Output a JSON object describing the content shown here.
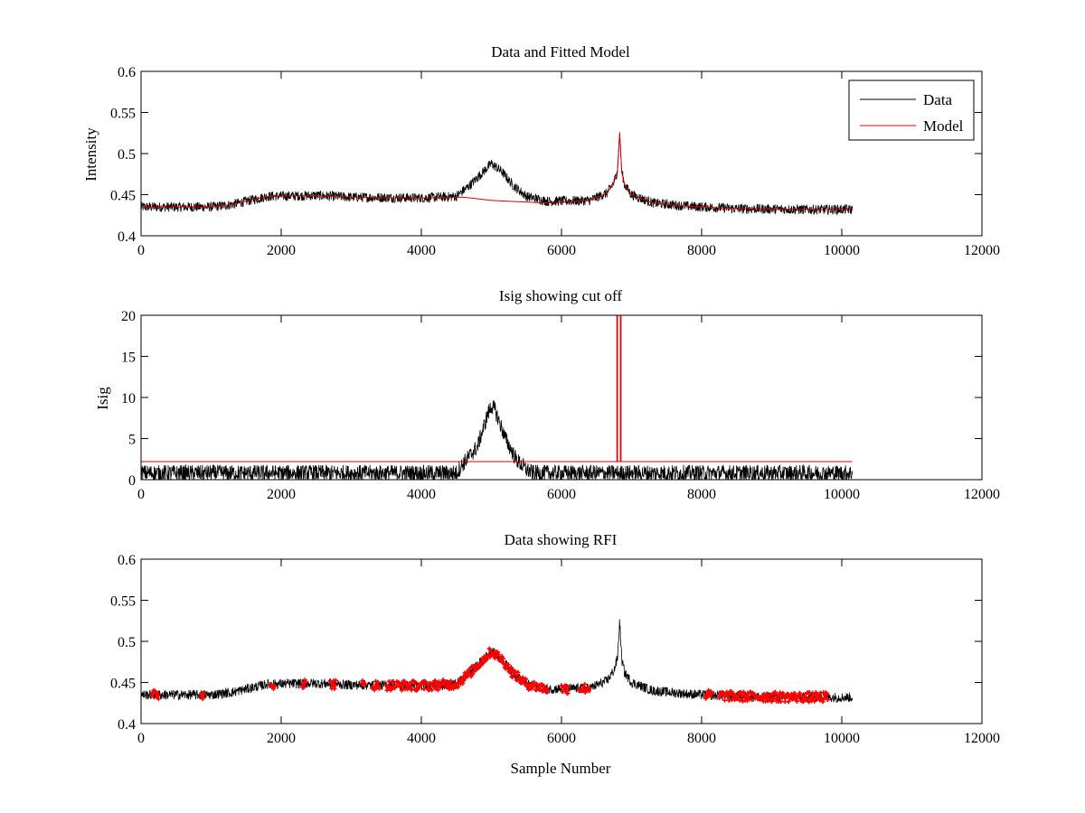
{
  "colors": {
    "data": "#000000",
    "model": "#e00000",
    "rfi": "#ff0000",
    "axes": "#000000",
    "background": "#ffffff"
  },
  "chart_data": [
    {
      "type": "line",
      "title": "Data and Fitted Model",
      "xlabel": "",
      "ylabel": "Intensity",
      "xlim": [
        0,
        12000
      ],
      "ylim": [
        0.4,
        0.6
      ],
      "xticks": [
        0,
        2000,
        4000,
        6000,
        8000,
        10000,
        12000
      ],
      "yticks": [
        0.4,
        0.45,
        0.5,
        0.55,
        0.6
      ],
      "xtick_labels": [
        "0",
        "2000",
        "4000",
        "6000",
        "8000",
        "10000",
        "12000"
      ],
      "ytick_labels": [
        "0.4",
        "0.45",
        "0.5",
        "0.55",
        "0.6"
      ],
      "grid": false,
      "legend": {
        "position": "top-right",
        "entries": [
          "Data",
          "Model"
        ]
      },
      "series": [
        {
          "name": "Data",
          "color": "#000000",
          "noise": 0.006,
          "x": [
            0,
            1000,
            1300,
            1800,
            2500,
            3000,
            4000,
            4500,
            4700,
            4850,
            5000,
            5150,
            5300,
            5500,
            5800,
            6400,
            6650,
            6750,
            6800,
            6830,
            6860,
            6900,
            7000,
            7300,
            7800,
            8500,
            9500,
            10150
          ],
          "y": [
            0.435,
            0.435,
            0.438,
            0.448,
            0.449,
            0.447,
            0.446,
            0.448,
            0.462,
            0.475,
            0.488,
            0.478,
            0.462,
            0.448,
            0.442,
            0.443,
            0.452,
            0.465,
            0.48,
            0.525,
            0.478,
            0.462,
            0.45,
            0.44,
            0.436,
            0.433,
            0.432,
            0.432
          ]
        },
        {
          "name": "Model",
          "color": "#e00000",
          "noise": 0,
          "x": [
            0,
            1000,
            1300,
            1800,
            2500,
            3000,
            4000,
            4600,
            5000,
            5500,
            5800,
            6400,
            6650,
            6750,
            6800,
            6830,
            6860,
            6900,
            7000,
            7300,
            7800,
            8500,
            9500,
            10150
          ],
          "y": [
            0.435,
            0.435,
            0.438,
            0.448,
            0.449,
            0.447,
            0.446,
            0.447,
            0.443,
            0.441,
            0.44,
            0.443,
            0.452,
            0.465,
            0.48,
            0.526,
            0.478,
            0.462,
            0.45,
            0.44,
            0.436,
            0.433,
            0.432,
            0.432
          ]
        }
      ]
    },
    {
      "type": "line",
      "title": "Isig showing cut off",
      "xlabel": "",
      "ylabel": "Isig",
      "xlim": [
        0,
        12000
      ],
      "ylim": [
        0,
        20
      ],
      "xticks": [
        0,
        2000,
        4000,
        6000,
        8000,
        10000,
        12000
      ],
      "yticks": [
        0,
        5,
        10,
        15,
        20
      ],
      "xtick_labels": [
        "0",
        "2000",
        "4000",
        "6000",
        "8000",
        "10000",
        "12000"
      ],
      "ytick_labels": [
        "0",
        "5",
        "10",
        "15",
        "20"
      ],
      "grid": false,
      "series": [
        {
          "name": "Isig",
          "color": "#000000",
          "noise": 1.0,
          "x": [
            0,
            4500,
            4600,
            4800,
            4950,
            5000,
            5050,
            5200,
            5350,
            5500,
            5600,
            10150
          ],
          "y": [
            0.8,
            0.8,
            2.0,
            4.0,
            8.0,
            9.0,
            8.5,
            5.0,
            2.5,
            1.2,
            0.8,
            0.8
          ]
        },
        {
          "name": "Cut off",
          "color": "#e00000",
          "noise": 0,
          "x": [
            0,
            6790,
            6790,
            6800,
            6800,
            6840,
            6840,
            6850,
            6850,
            10150
          ],
          "y": [
            2.2,
            2.2,
            20,
            20,
            2.2,
            2.2,
            20,
            20,
            2.2,
            2.2
          ]
        }
      ]
    },
    {
      "type": "scatter",
      "title": "Data showing RFI",
      "xlabel": "Sample Number",
      "ylabel": "",
      "xlim": [
        0,
        12000
      ],
      "ylim": [
        0.4,
        0.6
      ],
      "xticks": [
        0,
        2000,
        4000,
        6000,
        8000,
        10000,
        12000
      ],
      "yticks": [
        0.4,
        0.45,
        0.5,
        0.55,
        0.6
      ],
      "xtick_labels": [
        "0",
        "2000",
        "4000",
        "6000",
        "8000",
        "10000",
        "12000"
      ],
      "ytick_labels": [
        "0.4",
        "0.45",
        "0.5",
        "0.55",
        "0.6"
      ],
      "grid": false,
      "series": [
        {
          "name": "Data",
          "color": "#000000",
          "noise": 0.006,
          "x": [
            0,
            1000,
            1300,
            1800,
            2500,
            3000,
            4000,
            4500,
            4700,
            4850,
            5000,
            5150,
            5300,
            5500,
            5800,
            6400,
            6650,
            6750,
            6800,
            6830,
            6860,
            6900,
            7000,
            7300,
            7800,
            8500,
            9500,
            10150
          ],
          "y": [
            0.435,
            0.435,
            0.438,
            0.448,
            0.449,
            0.447,
            0.446,
            0.448,
            0.462,
            0.475,
            0.488,
            0.478,
            0.462,
            0.448,
            0.442,
            0.443,
            0.452,
            0.465,
            0.48,
            0.525,
            0.478,
            0.462,
            0.45,
            0.44,
            0.436,
            0.433,
            0.432,
            0.432
          ]
        },
        {
          "name": "RFI",
          "color": "#ff0000",
          "marker": "+",
          "ranges": [
            [
              150,
              250
            ],
            [
              850,
              900
            ],
            [
              1850,
              1900
            ],
            [
              2300,
              2350
            ],
            [
              2700,
              2780
            ],
            [
              3150,
              3200
            ],
            [
              3300,
              3400
            ],
            [
              3500,
              5800
            ],
            [
              6000,
              6100
            ],
            [
              6250,
              6400
            ],
            [
              8050,
              8150
            ],
            [
              8250,
              9800
            ]
          ]
        }
      ]
    }
  ]
}
